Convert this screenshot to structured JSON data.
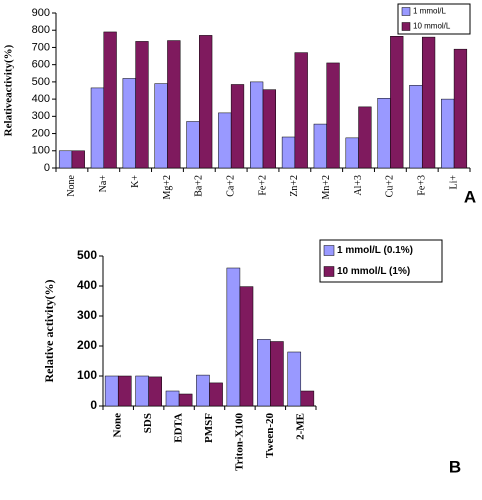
{
  "chart_data": [
    {
      "type": "bar",
      "y_label": "Relativeactivity(%)",
      "panel_label": "A",
      "categories": [
        "None",
        "Na+",
        "K+",
        "Mg+2",
        "Ba+2",
        "Ca+2",
        "Fe+2",
        "Zn+2",
        "Mn+2",
        "Al+3",
        "Cu+2",
        "Fe+3",
        "Li+"
      ],
      "series": [
        {
          "name": "1 mmol/L",
          "color": "#9999ff",
          "values": [
            100,
            465,
            520,
            490,
            270,
            320,
            500,
            180,
            255,
            175,
            405,
            480,
            400
          ]
        },
        {
          "name": "10 mmol/L",
          "color": "#7f1a5e",
          "values": [
            100,
            790,
            735,
            740,
            770,
            485,
            455,
            670,
            610,
            355,
            765,
            760,
            690
          ]
        }
      ],
      "ylim": [
        0,
        900
      ],
      "yticks": [
        0,
        100,
        200,
        300,
        400,
        500,
        600,
        700,
        800,
        900
      ],
      "grid": false,
      "legend": "upper right"
    },
    {
      "type": "bar",
      "y_label": "Relative activity(%)",
      "panel_label": "B",
      "categories": [
        "None",
        "SDS",
        "EDTA",
        "PMSF",
        "Triton-X100",
        "Tween-20",
        "2-ME"
      ],
      "series": [
        {
          "name": "1 mmol/L (0.1%)",
          "color": "#9999ff",
          "values": [
            100,
            100,
            50,
            103,
            460,
            222,
            180
          ]
        },
        {
          "name": "10 mmol/L (1%)",
          "color": "#7f1a5e",
          "values": [
            100,
            97,
            40,
            77,
            398,
            215,
            50
          ]
        }
      ],
      "ylim": [
        0,
        500
      ],
      "yticks": [
        0,
        100,
        200,
        300,
        400,
        500
      ],
      "grid": false,
      "legend": "upper right"
    }
  ]
}
